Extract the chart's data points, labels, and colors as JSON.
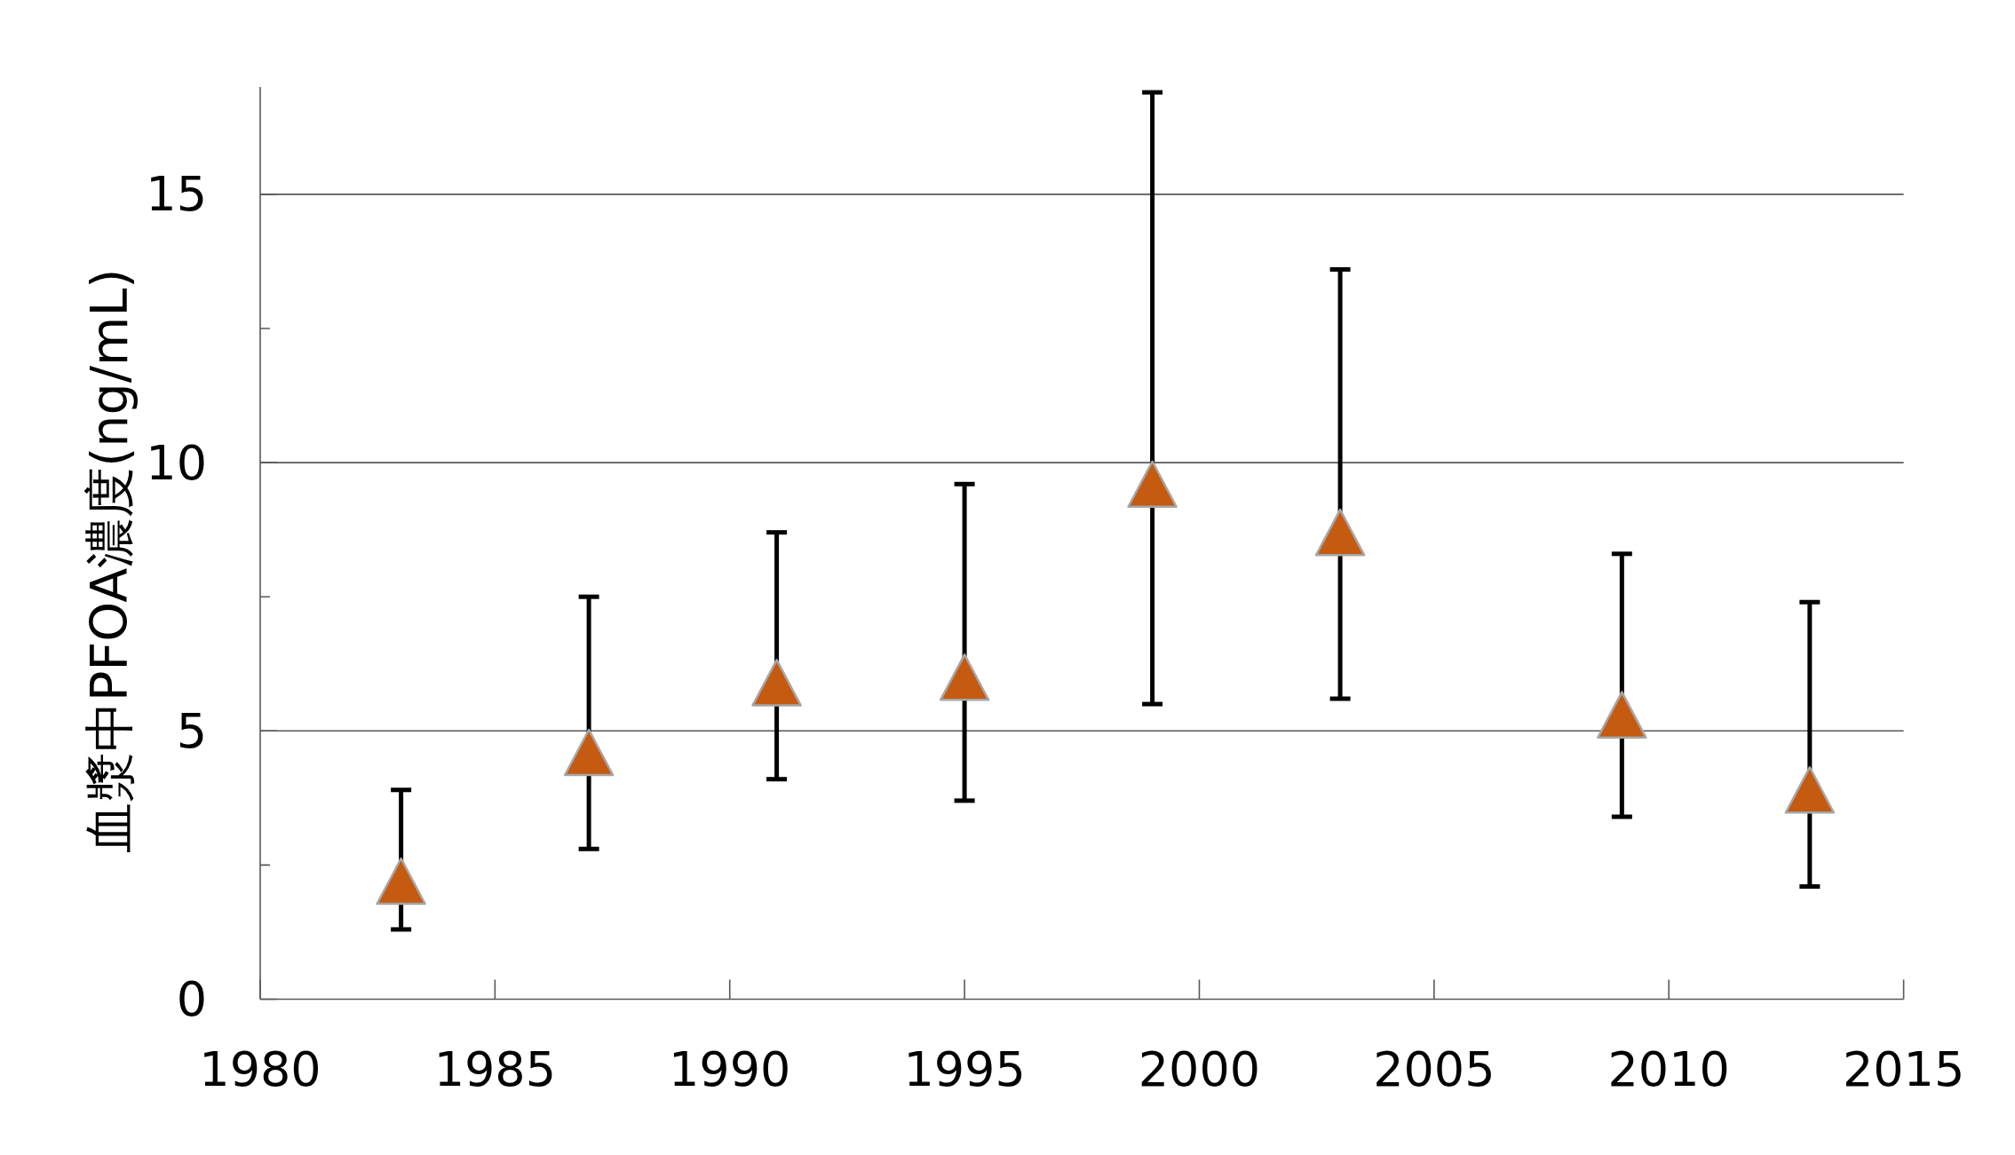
{
  "chart_data": {
    "type": "scatter",
    "ylabel": "血漿中PFOA濃度(ng/mL)",
    "x": [
      1983,
      1987,
      1991,
      1995,
      1999,
      2003,
      2009,
      2013
    ],
    "values": [
      2.2,
      4.6,
      5.9,
      6.0,
      9.6,
      8.7,
      5.3,
      3.9
    ],
    "errors": [
      [
        1.3,
        3.9
      ],
      [
        2.8,
        7.5
      ],
      [
        4.1,
        8.7
      ],
      [
        3.7,
        9.6
      ],
      [
        5.5,
        16.9
      ],
      [
        5.6,
        13.6
      ],
      [
        3.4,
        8.3
      ],
      [
        2.1,
        7.4
      ]
    ],
    "color": "#c55a11",
    "marker": "triangle",
    "xlim": [
      1980,
      2015
    ],
    "xticks": [
      1980,
      1985,
      1990,
      1995,
      2000,
      2005,
      2010,
      2015
    ],
    "ylim": [
      0,
      17
    ],
    "yticks": [
      0,
      {
        "value": 2.5,
        "label": null
      },
      5,
      {
        "value": 7.5,
        "label": null
      },
      10,
      {
        "value": 12.5,
        "label": null
      },
      15
    ],
    "grid": "y"
  }
}
